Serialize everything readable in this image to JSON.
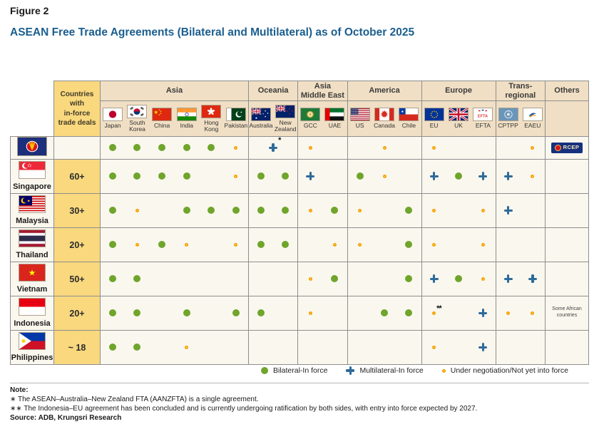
{
  "figure": {
    "label": "Figure 2",
    "title": "ASEAN Free Trade Agreements (Bilateral and Multilateral) as of October 2025"
  },
  "colors": {
    "title_blue": "#1b5e8e",
    "header_beige": "#f0dfc4",
    "count_yellow": "#f9d87e",
    "cell_cream": "#faf7ee",
    "bilateral_green": "#6fa52b",
    "multilateral_blue": "#2d6b9a",
    "negotiation_yellow": "#f5a400",
    "grid_gray": "#8e8e8e"
  },
  "legend": {
    "items": [
      {
        "code": "B",
        "label": "Bilateral-In force"
      },
      {
        "code": "M",
        "label": "Multilateral-In force"
      },
      {
        "code": "N",
        "label": "Under negotiation/Not yet into force"
      }
    ]
  },
  "notes": {
    "heading": "Note:",
    "items": [
      "∗ The ASEAN–Australia–New Zealand FTA (AANZFTA) is a single agreement.",
      "∗∗ The Indonesia–EU agreement has been concluded and is currently undergoing ratification by both sides, with entry into force expected by 2027."
    ],
    "source": "Source: ADB, Krungsri Research"
  },
  "chart_data": {
    "type": "table",
    "title": "ASEAN Free Trade Agreements (Bilateral and Multilateral) as of October 2025",
    "corner_header": "Countries\nwith\nin-force\ntrade deals",
    "marker_codes": {
      "B": "Bilateral-In force",
      "M": "Multilateral-In force",
      "N": "Under negotiation/Not yet into force"
    },
    "column_groups": [
      {
        "label": "Asia",
        "span": 6
      },
      {
        "label": "Oceania",
        "span": 2
      },
      {
        "label": "Asia\nMiddle East",
        "span": 2
      },
      {
        "label": "America",
        "span": 3
      },
      {
        "label": "Europe",
        "span": 3
      },
      {
        "label": "Trans-regional",
        "span": 2
      },
      {
        "label": "Others",
        "span": 1
      }
    ],
    "columns": [
      {
        "id": "japan",
        "label": "Japan",
        "flag": "jp"
      },
      {
        "id": "south_korea",
        "label": "South Korea",
        "flag": "kr"
      },
      {
        "id": "china",
        "label": "China",
        "flag": "cn"
      },
      {
        "id": "india",
        "label": "India",
        "flag": "in"
      },
      {
        "id": "hong_kong",
        "label": "Hong Kong",
        "flag": "hk"
      },
      {
        "id": "pakistan",
        "label": "Pakistan",
        "flag": "pk"
      },
      {
        "id": "australia",
        "label": "Australia",
        "flag": "au"
      },
      {
        "id": "new_zealand",
        "label": "New Zealand",
        "flag": "nz"
      },
      {
        "id": "gcc",
        "label": "GCC",
        "flag": "gcc"
      },
      {
        "id": "uae",
        "label": "UAE",
        "flag": "ae"
      },
      {
        "id": "us",
        "label": "US",
        "flag": "us"
      },
      {
        "id": "canada",
        "label": "Canada",
        "flag": "ca"
      },
      {
        "id": "chile",
        "label": "Chile",
        "flag": "cl"
      },
      {
        "id": "eu",
        "label": "EU",
        "flag": "eu"
      },
      {
        "id": "uk",
        "label": "UK",
        "flag": "uk"
      },
      {
        "id": "efta",
        "label": "EFTA",
        "flag": "efta"
      },
      {
        "id": "cptpp",
        "label": "CPTPP",
        "flag": "cptpp"
      },
      {
        "id": "eaeu",
        "label": "EAEU",
        "flag": "eaeu"
      },
      {
        "id": "others",
        "label": "",
        "flag": ""
      }
    ],
    "rows": [
      {
        "country": "asean",
        "label": "",
        "flag": "asean",
        "deals": "",
        "cells": [
          "B",
          "B",
          "B",
          "B",
          "B",
          "N",
          {
            "m": "M",
            "sup": "*",
            "span": 2
          },
          "N",
          "",
          "",
          "N",
          "",
          "N",
          "",
          "",
          "",
          "N",
          {
            "badge": "RCEP"
          }
        ]
      },
      {
        "country": "singapore",
        "label": "Singapore",
        "flag": "sg",
        "deals": "60+",
        "cells": [
          "B",
          "B",
          "B",
          "B",
          "",
          "N",
          "B",
          "B",
          "M",
          "",
          "B",
          "N",
          "",
          "M",
          "B",
          "M",
          "M",
          "N",
          ""
        ]
      },
      {
        "country": "malaysia",
        "label": "Malaysia",
        "flag": "my",
        "deals": "30+",
        "cells": [
          "B",
          "N",
          "",
          "B",
          "B",
          "B",
          "B",
          "B",
          "N",
          "B",
          "N",
          "",
          "B",
          "N",
          "",
          "N",
          "M",
          "",
          ""
        ]
      },
      {
        "country": "thailand",
        "label": "Thailand",
        "flag": "th",
        "deals": "20+",
        "cells": [
          "B",
          "N",
          "B",
          "N",
          "",
          "N",
          "B",
          "B",
          "",
          "N",
          "N",
          "",
          "B",
          "N",
          "",
          "N",
          "",
          "",
          ""
        ]
      },
      {
        "country": "vietnam",
        "label": "Vietnam",
        "flag": "vn",
        "deals": "50+",
        "cells": [
          "B",
          "B",
          "",
          "",
          "",
          "",
          "",
          "",
          "N",
          "B",
          "",
          "",
          "B",
          "M",
          "B",
          "N",
          "M",
          "M",
          ""
        ]
      },
      {
        "country": "indonesia",
        "label": "Indonesia",
        "flag": "id",
        "deals": "20+",
        "cells": [
          "B",
          "B",
          "",
          "B",
          "",
          "B",
          "B",
          "",
          "N",
          "",
          "",
          "B",
          "B",
          {
            "m": "N",
            "sup": "**"
          },
          "",
          "M",
          "N",
          "N",
          {
            "text": "Some African countries"
          }
        ]
      },
      {
        "country": "philippines",
        "label": "Philippines",
        "flag": "ph",
        "deals": "~ 18",
        "cells": [
          "B",
          "B",
          "",
          "N",
          "",
          "",
          "",
          "",
          "",
          "",
          "",
          "",
          "",
          "N",
          "",
          "M",
          "",
          "",
          ""
        ]
      }
    ]
  }
}
